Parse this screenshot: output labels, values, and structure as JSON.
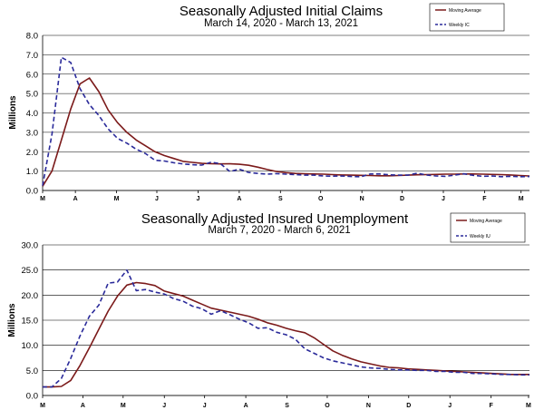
{
  "chart_data": [
    {
      "type": "line",
      "title": "Seasonally Adjusted Initial Claims",
      "subtitle": "March 14, 2020 - March 13, 2021",
      "ylabel": "Millions",
      "ylim": [
        0,
        8
      ],
      "yticks": [
        "0.0",
        "1.0",
        "2.0",
        "3.0",
        "4.0",
        "5.0",
        "6.0",
        "7.0",
        "8.0"
      ],
      "ytick_values": [
        0,
        1,
        2,
        3,
        4,
        5,
        6,
        7,
        8
      ],
      "xlim": [
        0,
        52
      ],
      "xticks": [
        {
          "label": "M",
          "x": 0
        },
        {
          "label": "A",
          "x": 3.5
        },
        {
          "label": "M",
          "x": 7.9
        },
        {
          "label": "J",
          "x": 12.2
        },
        {
          "label": "J",
          "x": 16.6
        },
        {
          "label": "A",
          "x": 21
        },
        {
          "label": "S",
          "x": 25.4
        },
        {
          "label": "O",
          "x": 29.7
        },
        {
          "label": "N",
          "x": 34.1
        },
        {
          "label": "D",
          "x": 38.4
        },
        {
          "label": "J",
          "x": 42.8
        },
        {
          "label": "F",
          "x": 47.2
        },
        {
          "label": "M",
          "x": 51.1
        }
      ],
      "grid": true,
      "legend": "top-right",
      "series": [
        {
          "name": "Moving Average",
          "color": "#7b1a1a",
          "dash": "solid",
          "x": [
            0,
            1,
            2,
            3,
            4,
            5,
            6,
            7,
            8,
            9,
            10,
            11,
            12,
            13,
            14,
            15,
            16,
            17,
            18,
            19,
            20,
            21,
            22,
            23,
            24,
            25,
            26,
            27,
            28,
            29,
            30,
            31,
            32,
            33,
            34,
            35,
            36,
            37,
            38,
            39,
            40,
            41,
            42,
            43,
            44,
            45,
            46,
            47,
            48,
            49,
            50,
            51,
            52
          ],
          "values": [
            0.22,
            1.0,
            2.6,
            4.2,
            5.5,
            5.8,
            5.1,
            4.15,
            3.5,
            3.0,
            2.6,
            2.3,
            2.0,
            1.8,
            1.65,
            1.5,
            1.45,
            1.4,
            1.38,
            1.37,
            1.38,
            1.35,
            1.3,
            1.2,
            1.08,
            0.98,
            0.92,
            0.88,
            0.86,
            0.85,
            0.84,
            0.82,
            0.8,
            0.79,
            0.78,
            0.77,
            0.76,
            0.76,
            0.77,
            0.79,
            0.81,
            0.82,
            0.83,
            0.84,
            0.84,
            0.85,
            0.85,
            0.84,
            0.83,
            0.82,
            0.8,
            0.77,
            0.75
          ]
        },
        {
          "name": "Weekly IC",
          "color": "#2a2a9a",
          "dash": "dashed",
          "x": [
            0,
            1,
            2,
            3,
            4,
            5,
            6,
            7,
            8,
            9,
            10,
            11,
            12,
            13,
            14,
            15,
            16,
            17,
            18,
            19,
            20,
            21,
            22,
            23,
            24,
            25,
            26,
            27,
            28,
            29,
            30,
            31,
            32,
            33,
            34,
            35,
            36,
            37,
            38,
            39,
            40,
            41,
            42,
            43,
            44,
            45,
            46,
            47,
            48,
            49,
            50,
            51,
            52
          ],
          "values": [
            0.25,
            2.9,
            6.87,
            6.6,
            5.25,
            4.43,
            3.87,
            3.17,
            2.69,
            2.44,
            2.13,
            1.9,
            1.56,
            1.52,
            1.43,
            1.37,
            1.33,
            1.31,
            1.46,
            1.38,
            0.98,
            1.1,
            0.93,
            0.88,
            0.84,
            0.87,
            0.84,
            0.82,
            0.79,
            0.79,
            0.75,
            0.74,
            0.75,
            0.72,
            0.71,
            0.85,
            0.85,
            0.81,
            0.79,
            0.79,
            0.89,
            0.8,
            0.75,
            0.73,
            0.79,
            0.86,
            0.78,
            0.73,
            0.75,
            0.71,
            0.73,
            0.71,
            0.72
          ]
        }
      ]
    },
    {
      "type": "line",
      "title": "Seasonally Adjusted Insured Unemployment",
      "subtitle": "March 7, 2020 - March 6, 2021",
      "ylabel": "Millions",
      "ylim": [
        0,
        30
      ],
      "yticks": [
        "0.0",
        "5.0",
        "10.0",
        "15.0",
        "20.0",
        "25.0",
        "30.0"
      ],
      "ytick_values": [
        0,
        5,
        10,
        15,
        20,
        25,
        30
      ],
      "xlim": [
        0,
        52
      ],
      "xticks": [
        {
          "label": "M",
          "x": 0
        },
        {
          "label": "A",
          "x": 4.3
        },
        {
          "label": "M",
          "x": 8.6
        },
        {
          "label": "J",
          "x": 13
        },
        {
          "label": "J",
          "x": 17.3
        },
        {
          "label": "A",
          "x": 21.7
        },
        {
          "label": "S",
          "x": 26.1
        },
        {
          "label": "O",
          "x": 30.4
        },
        {
          "label": "N",
          "x": 34.8
        },
        {
          "label": "D",
          "x": 39.1
        },
        {
          "label": "J",
          "x": 43.5
        },
        {
          "label": "F",
          "x": 47.9
        },
        {
          "label": "M",
          "x": 51.9
        }
      ],
      "grid": true,
      "legend": "top-right",
      "series": [
        {
          "name": "Moving Average",
          "color": "#7b1a1a",
          "dash": "solid",
          "x": [
            0,
            1,
            2,
            3,
            4,
            5,
            6,
            7,
            8,
            9,
            10,
            11,
            12,
            13,
            14,
            15,
            16,
            17,
            18,
            19,
            20,
            21,
            22,
            23,
            24,
            25,
            26,
            27,
            28,
            29,
            30,
            31,
            32,
            33,
            34,
            35,
            36,
            37,
            38,
            39,
            40,
            41,
            42,
            43,
            44,
            45,
            46,
            47,
            48,
            49,
            50,
            51,
            52
          ],
          "values": [
            1.7,
            1.7,
            1.8,
            3.0,
            6.0,
            9.5,
            13.2,
            16.8,
            19.8,
            22.0,
            22.5,
            22.3,
            21.9,
            20.8,
            20.3,
            19.8,
            19.0,
            18.2,
            17.4,
            17.0,
            16.6,
            16.2,
            15.8,
            15.2,
            14.5,
            14.0,
            13.4,
            12.9,
            12.5,
            11.5,
            10.2,
            8.9,
            8.0,
            7.3,
            6.7,
            6.3,
            5.9,
            5.6,
            5.5,
            5.3,
            5.2,
            5.1,
            5.0,
            4.9,
            4.8,
            4.7,
            4.6,
            4.5,
            4.4,
            4.3,
            4.2,
            4.2,
            4.2
          ]
        },
        {
          "name": "Weekly IU",
          "color": "#2a2a9a",
          "dash": "dashed",
          "x": [
            0,
            1,
            2,
            3,
            4,
            5,
            6,
            7,
            8,
            9,
            10,
            11,
            12,
            13,
            14,
            15,
            16,
            17,
            18,
            19,
            20,
            21,
            22,
            23,
            24,
            25,
            26,
            27,
            28,
            29,
            30,
            31,
            32,
            33,
            34,
            35,
            36,
            37,
            38,
            39,
            40,
            41,
            42,
            43,
            44,
            45,
            46,
            47,
            48,
            49,
            50,
            51,
            52
          ],
          "values": [
            1.7,
            1.7,
            3.4,
            7.4,
            11.9,
            15.8,
            18.0,
            22.4,
            22.6,
            25.0,
            20.9,
            21.1,
            20.6,
            20.2,
            19.3,
            18.8,
            17.8,
            17.3,
            16.2,
            16.9,
            16.1,
            15.2,
            14.5,
            13.4,
            13.5,
            12.6,
            12.1,
            11.2,
            9.3,
            8.4,
            7.5,
            6.9,
            6.5,
            6.1,
            5.7,
            5.5,
            5.4,
            5.2,
            5.1,
            5.1,
            5.0,
            5.0,
            4.8,
            4.8,
            4.6,
            4.6,
            4.4,
            4.4,
            4.3,
            4.2,
            4.2,
            4.1,
            4.1
          ]
        }
      ]
    }
  ]
}
